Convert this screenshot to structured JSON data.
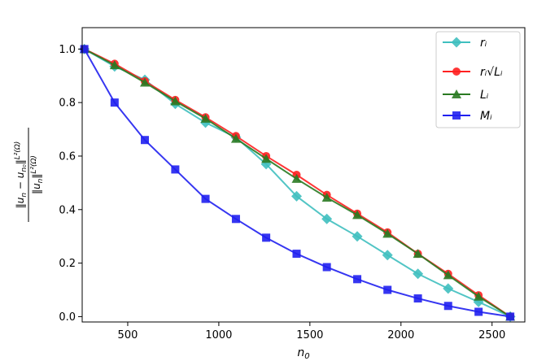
{
  "chart_data": {
    "type": "line",
    "xlabel": "n₀",
    "ylabel": "‖uₙ − uₙ₀‖L²(Ω) / ‖uₙ‖L²(Ω)",
    "xlim": [
      250,
      2680
    ],
    "ylim": [
      -0.02,
      1.08
    ],
    "xticks": [
      500,
      1000,
      1500,
      2000,
      2500
    ],
    "yticks": [
      0.0,
      0.2,
      0.4,
      0.6,
      0.8,
      1.0
    ],
    "x_tick_labels": [
      "500",
      "1000",
      "1500",
      "2000",
      "2500"
    ],
    "y_tick_labels": [
      "0.0",
      "0.2",
      "0.4",
      "0.6",
      "0.8",
      "1.0"
    ],
    "grid": false,
    "legend_position": "top-right",
    "x": [
      262,
      428,
      594,
      761,
      927,
      1094,
      1260,
      1427,
      1593,
      1760,
      1926,
      2093,
      2259,
      2426,
      2600
    ],
    "series": [
      {
        "name": "r_i",
        "legend_label": "rᵢ",
        "color": "#3fbfbf",
        "marker": "diamond",
        "values": [
          1.0,
          0.935,
          0.885,
          0.795,
          0.725,
          0.67,
          0.57,
          0.45,
          0.365,
          0.3,
          0.23,
          0.16,
          0.105,
          0.055,
          0.0
        ]
      },
      {
        "name": "r_i sqrt(L_i)",
        "legend_label": "rᵢ√Lᵢ",
        "color": "#ff2020",
        "marker": "circle",
        "values": [
          1.0,
          0.945,
          0.88,
          0.81,
          0.745,
          0.675,
          0.6,
          0.53,
          0.455,
          0.385,
          0.315,
          0.235,
          0.16,
          0.08,
          0.0
        ]
      },
      {
        "name": "L_i",
        "legend_label": "Lᵢ",
        "color": "#2a7a22",
        "marker": "triangle",
        "values": [
          1.0,
          0.94,
          0.875,
          0.805,
          0.74,
          0.665,
          0.59,
          0.515,
          0.445,
          0.38,
          0.31,
          0.235,
          0.155,
          0.075,
          0.0
        ]
      },
      {
        "name": "M_i",
        "legend_label": "Mᵢ",
        "color": "#2020f0",
        "marker": "square",
        "values": [
          1.0,
          0.8,
          0.66,
          0.55,
          0.44,
          0.365,
          0.295,
          0.235,
          0.185,
          0.14,
          0.1,
          0.068,
          0.04,
          0.018,
          0.0
        ]
      }
    ]
  }
}
